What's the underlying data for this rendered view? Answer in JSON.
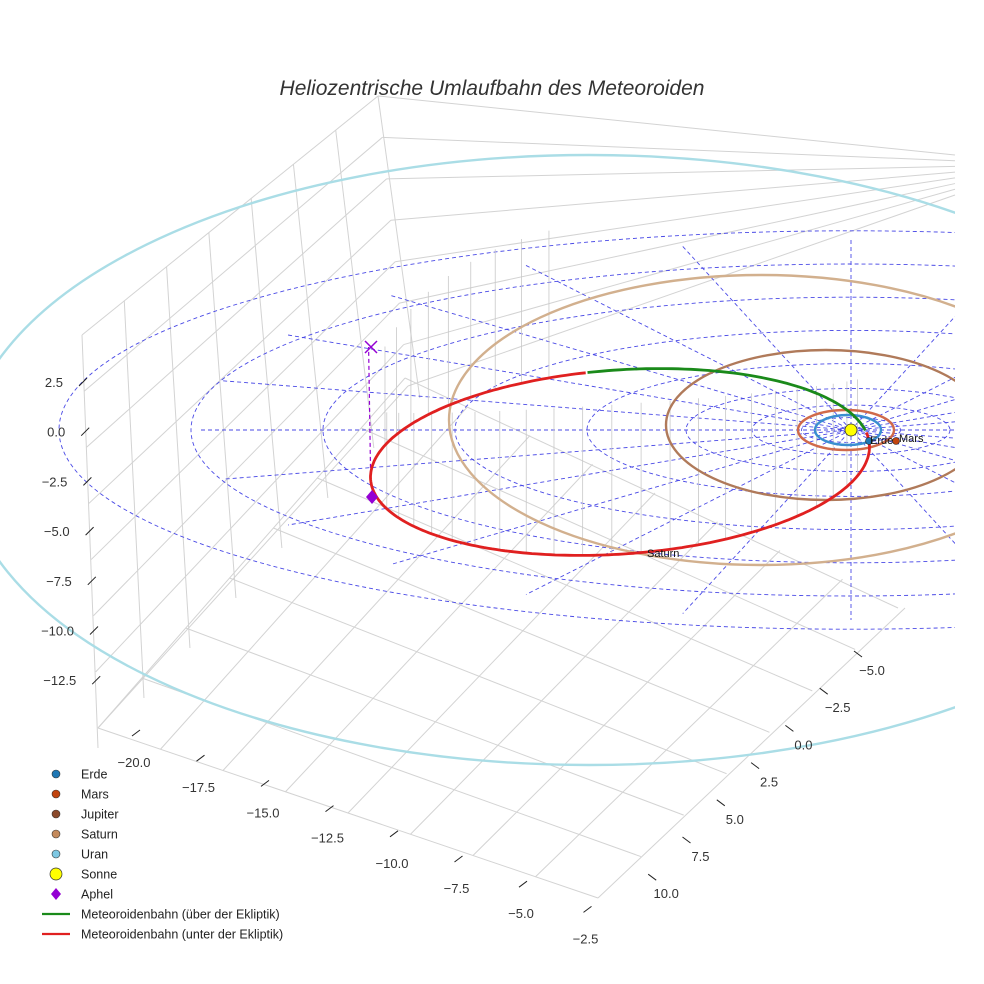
{
  "chart_data": {
    "type": "line3d",
    "title": "Heliozentrische Umlaufbahn des Meteoroiden",
    "z_ticks": [
      "2.5",
      "0.0",
      "−2.5",
      "−5.0",
      "−7.5",
      "−10.0",
      "−12.5"
    ],
    "x_ticks": [
      "−20.0",
      "−17.5",
      "−15.0",
      "−12.5",
      "−10.0",
      "−7.5",
      "−5.0",
      "−2.5"
    ],
    "y_ticks": [
      "−5.0",
      "−2.5",
      "0.0",
      "2.5",
      "5.0",
      "7.5",
      "10.0"
    ],
    "x_range": [
      -21,
      -2
    ],
    "y_range": [
      -7,
      11
    ],
    "z_range": [
      -14,
      4
    ],
    "planets": [
      {
        "name": "Erde",
        "orbit_radius_au": 1.0,
        "color": "#1f77b4",
        "orbit_color": "#3a8fd0",
        "label": "Erde"
      },
      {
        "name": "Mars",
        "orbit_radius_au": 1.52,
        "color": "#c1440e",
        "orbit_color": "#d06a4a",
        "label": "Mars"
      },
      {
        "name": "Jupiter",
        "orbit_radius_au": 5.2,
        "color": "#8b4a2b",
        "orbit_color": "#b07a5a",
        "label": ""
      },
      {
        "name": "Saturn",
        "orbit_radius_au": 9.58,
        "color": "#c48a5c",
        "orbit_color": "#d2b08e",
        "label": "Saturn"
      },
      {
        "name": "Uran",
        "orbit_radius_au": 19.2,
        "color": "#7ec8e3",
        "orbit_color": "#aadde6",
        "label": ""
      }
    ],
    "sun": {
      "name": "Sonne",
      "color": "#ffff00"
    },
    "aphel": {
      "name": "Aphel",
      "color": "#9400d3",
      "marker": "diamond"
    },
    "meteoroid_orbit": {
      "segments": [
        {
          "name": "Meteoroidenbahn (über der Ekliptik)",
          "color": "#1a8a1a"
        },
        {
          "name": "Meteoroidenbahn (unter der Ekliptik)",
          "color": "#e02020"
        }
      ]
    },
    "legend": [
      {
        "label": "Erde",
        "symbol": "circle",
        "color": "#1f77b4"
      },
      {
        "label": "Mars",
        "symbol": "circle",
        "color": "#c1440e"
      },
      {
        "label": "Jupiter",
        "symbol": "circle",
        "color": "#8b4a2b"
      },
      {
        "label": "Saturn",
        "symbol": "circle",
        "color": "#c48a5c"
      },
      {
        "label": "Uran",
        "symbol": "circle",
        "color": "#7ec8e3"
      },
      {
        "label": "Sonne",
        "symbol": "circle-big",
        "color": "#ffff00"
      },
      {
        "label": "Aphel",
        "symbol": "diamond",
        "color": "#9400d3"
      },
      {
        "label": "Meteoroidenbahn (über der Ekliptik)",
        "symbol": "line",
        "color": "#1a8a1a"
      },
      {
        "label": "Meteoroidenbahn (unter der Ekliptik)",
        "symbol": "line",
        "color": "#e02020"
      }
    ],
    "legend_position": "lower-left",
    "grid": true
  }
}
